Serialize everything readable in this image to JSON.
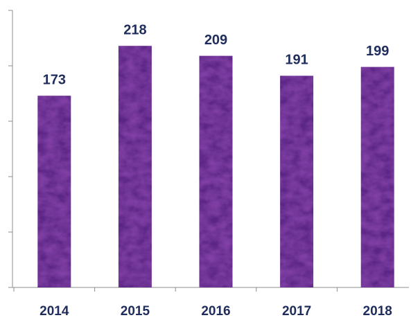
{
  "chart_data": {
    "type": "bar",
    "categories": [
      "2014",
      "2015",
      "2016",
      "2017",
      "2018"
    ],
    "values": [
      173,
      218,
      209,
      191,
      199
    ],
    "color": "#5a2585",
    "ylim": [
      0,
      250
    ],
    "yticks": [
      0,
      50,
      100,
      150,
      200,
      250
    ],
    "grid": false
  }
}
